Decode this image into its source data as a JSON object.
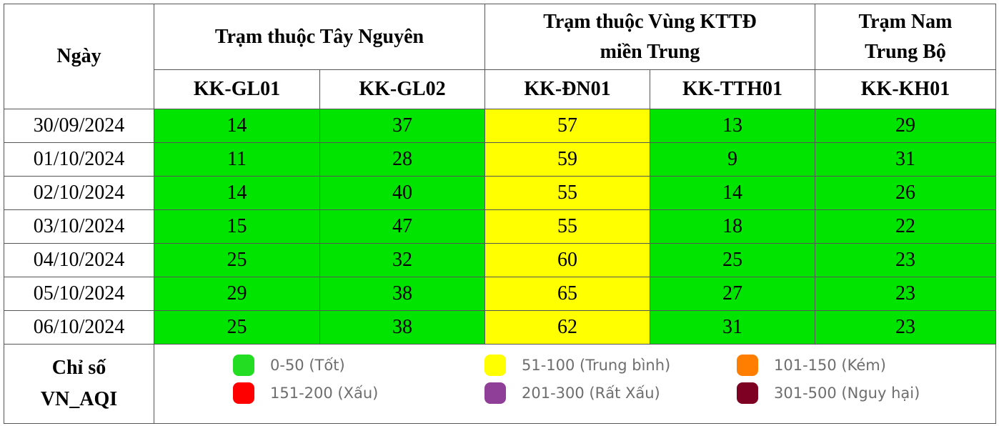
{
  "header": {
    "date_label": "Ngày",
    "groups": [
      {
        "label": "Trạm thuộc Tây Nguyên"
      },
      {
        "label_line1": "Trạm thuộc Vùng KTTĐ",
        "label_line2": "miền Trung"
      },
      {
        "label_line1": "Trạm Nam",
        "label_line2": "Trung Bộ"
      }
    ],
    "stations": [
      "KK-GL01",
      "KK-GL02",
      "KK-ĐN01",
      "KK-TTH01",
      "KK-KH01"
    ]
  },
  "rows": [
    {
      "date": "30/09/2024",
      "values": [
        "14",
        "37",
        "57",
        "13",
        "29"
      ]
    },
    {
      "date": "01/10/2024",
      "values": [
        "11",
        "28",
        "59",
        "9",
        "31"
      ]
    },
    {
      "date": "02/10/2024",
      "values": [
        "14",
        "40",
        "55",
        "14",
        "26"
      ]
    },
    {
      "date": "03/10/2024",
      "values": [
        "15",
        "47",
        "55",
        "18",
        "22"
      ]
    },
    {
      "date": "04/10/2024",
      "values": [
        "25",
        "32",
        "60",
        "25",
        "23"
      ]
    },
    {
      "date": "05/10/2024",
      "values": [
        "29",
        "38",
        "65",
        "27",
        "23"
      ]
    },
    {
      "date": "06/10/2024",
      "values": [
        "25",
        "38",
        "62",
        "31",
        "23"
      ]
    }
  ],
  "cell_colors": {
    "good": "#00e400",
    "moderate": "#ffff00"
  },
  "legend": {
    "label_line1": "Chỉ số",
    "label_line2": "VN_AQI",
    "items": [
      {
        "text": "0-50 (Tốt)",
        "color": "#22dd22"
      },
      {
        "text": "51-100 (Trung bình)",
        "color": "#ffff00"
      },
      {
        "text": "101-150 (Kém)",
        "color": "#ff7e00"
      },
      {
        "text": "151-200 (Xấu)",
        "color": "#ff0000"
      },
      {
        "text": "201-300 (Rất Xấu)",
        "color": "#8f3f97"
      },
      {
        "text": "301-500 (Nguy hại)",
        "color": "#7e0023"
      }
    ]
  }
}
